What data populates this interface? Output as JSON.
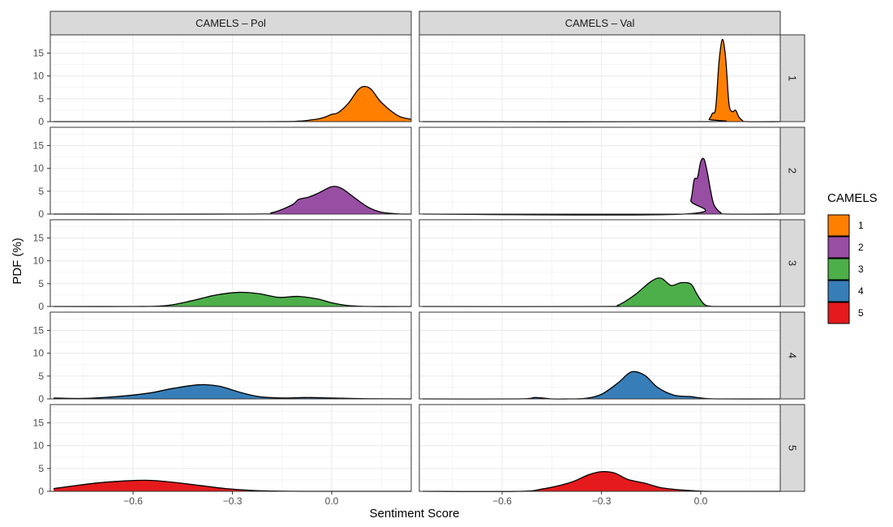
{
  "chart_data": {
    "type": "area",
    "facet_columns": [
      "CAMELS – Pol",
      "CAMELS – Val"
    ],
    "facet_rows": [
      "1",
      "2",
      "3",
      "4",
      "5"
    ],
    "xlabel": "Sentiment Score",
    "ylabel": "PDF (%)",
    "xlim": [
      -0.85,
      0.24
    ],
    "ylim": [
      0,
      19
    ],
    "x_ticks": [
      -0.6,
      -0.3,
      0.0
    ],
    "x_tick_labels": [
      "−0.6",
      "−0.3",
      "0.0"
    ],
    "y_ticks": [
      0,
      5,
      10,
      15
    ],
    "y_tick_labels": [
      "0",
      "5",
      "10",
      "15"
    ],
    "grid": true,
    "legend": {
      "title": "CAMELS",
      "position": "right",
      "items": [
        {
          "label": "1",
          "color": "#FF7F00"
        },
        {
          "label": "2",
          "color": "#984EA3"
        },
        {
          "label": "3",
          "color": "#4DAF4A"
        },
        {
          "label": "4",
          "color": "#377EB8"
        },
        {
          "label": "5",
          "color": "#E41A1C"
        }
      ]
    },
    "series": [
      {
        "name": "1",
        "panel": "Pol",
        "color": "#FF7F00",
        "x_range": [
          -0.84,
          0.24
        ],
        "x": [
          -0.84,
          -0.2,
          -0.1,
          -0.06,
          -0.04,
          -0.02,
          0.0,
          0.02,
          0.05,
          0.08,
          0.1,
          0.12,
          0.15,
          0.2,
          0.24
        ],
        "y": [
          0,
          0,
          0.1,
          0.4,
          0.6,
          1.0,
          1.6,
          2.0,
          4.0,
          7.0,
          7.7,
          7.0,
          4.2,
          1.3,
          0.5
        ]
      },
      {
        "name": "1",
        "panel": "Val",
        "color": "#FF7F00",
        "x_range": [
          -0.84,
          0.24
        ],
        "x": [
          -0.84,
          0.01,
          0.025,
          0.035,
          0.045,
          0.055,
          0.065,
          0.075,
          0.085,
          0.095,
          0.105,
          0.115,
          0.125,
          0.14,
          0.24
        ],
        "y": [
          0,
          0,
          0.5,
          1.8,
          3.0,
          13.0,
          18.0,
          14.0,
          4.0,
          2.2,
          2.5,
          1.0,
          0.3,
          0,
          0
        ]
      },
      {
        "name": "2",
        "panel": "Pol",
        "color": "#984EA3",
        "x_range": [
          -0.84,
          0.24
        ],
        "x": [
          -0.84,
          -0.25,
          -0.18,
          -0.12,
          -0.1,
          -0.07,
          -0.04,
          0.0,
          0.03,
          0.07,
          0.11,
          0.15,
          0.2,
          0.24
        ],
        "y": [
          0,
          0,
          0.3,
          2.0,
          3.2,
          3.7,
          4.6,
          6.0,
          5.6,
          3.5,
          1.5,
          0.4,
          0.05,
          0
        ]
      },
      {
        "name": "2",
        "panel": "Val",
        "color": "#984EA3",
        "x_range": [
          -0.84,
          0.24
        ],
        "x": [
          -0.84,
          -0.05,
          -0.03,
          -0.02,
          -0.01,
          0.0,
          0.01,
          0.02,
          0.03,
          0.04,
          0.06,
          0.08,
          0.24
        ],
        "y": [
          0,
          0,
          3.0,
          7.5,
          8.0,
          11.5,
          12.0,
          9.0,
          5.0,
          2.0,
          0.3,
          0,
          0
        ]
      },
      {
        "name": "3",
        "panel": "Pol",
        "color": "#4DAF4A",
        "x_range": [
          -0.84,
          0.24
        ],
        "x": [
          -0.84,
          -0.6,
          -0.5,
          -0.42,
          -0.35,
          -0.28,
          -0.22,
          -0.16,
          -0.1,
          -0.04,
          0.0,
          0.05,
          0.12,
          0.24
        ],
        "y": [
          0,
          0,
          0.2,
          1.3,
          2.5,
          3.1,
          2.8,
          2.0,
          2.2,
          1.6,
          0.8,
          0.2,
          0,
          0
        ]
      },
      {
        "name": "3",
        "panel": "Val",
        "color": "#4DAF4A",
        "x_range": [
          -0.84,
          0.24
        ],
        "x": [
          -0.84,
          -0.3,
          -0.25,
          -0.2,
          -0.15,
          -0.12,
          -0.09,
          -0.06,
          -0.03,
          -0.01,
          0.01,
          0.03,
          0.08,
          0.24
        ],
        "y": [
          0,
          0,
          0.3,
          2.5,
          5.5,
          6.2,
          4.6,
          5.2,
          4.9,
          2.5,
          0.5,
          0.05,
          0,
          0
        ]
      },
      {
        "name": "4",
        "panel": "Pol",
        "color": "#377EB8",
        "x_range": [
          -0.84,
          0.24
        ],
        "x": [
          -0.84,
          -0.75,
          -0.65,
          -0.55,
          -0.48,
          -0.4,
          -0.34,
          -0.28,
          -0.22,
          -0.15,
          -0.08,
          0.0,
          0.1,
          0.24
        ],
        "y": [
          0.2,
          0.1,
          0.5,
          1.3,
          2.3,
          3.1,
          2.8,
          1.5,
          0.5,
          0.2,
          0.3,
          0.2,
          0.05,
          0
        ]
      },
      {
        "name": "4",
        "panel": "Val",
        "color": "#377EB8",
        "x_range": [
          -0.84,
          0.24
        ],
        "x": [
          -0.84,
          -0.55,
          -0.5,
          -0.45,
          -0.4,
          -0.35,
          -0.3,
          -0.25,
          -0.21,
          -0.17,
          -0.13,
          -0.08,
          -0.03,
          0.0,
          0.05,
          0.24
        ],
        "y": [
          0,
          0,
          0.3,
          0,
          0,
          0.1,
          1.0,
          3.5,
          5.9,
          5.2,
          2.5,
          0.8,
          0.5,
          0.2,
          0,
          0
        ]
      },
      {
        "name": "5",
        "panel": "Pol",
        "color": "#E41A1C",
        "x_range": [
          -0.84,
          0.24
        ],
        "x": [
          -0.84,
          -0.78,
          -0.7,
          -0.62,
          -0.55,
          -0.48,
          -0.4,
          -0.32,
          -0.24,
          -0.16,
          -0.08,
          0.0,
          0.24
        ],
        "y": [
          0.6,
          1.2,
          1.9,
          2.3,
          2.4,
          2.0,
          1.3,
          0.6,
          0.2,
          0.05,
          0,
          0,
          0
        ]
      },
      {
        "name": "5",
        "panel": "Val",
        "color": "#E41A1C",
        "x_range": [
          -0.84,
          0.24
        ],
        "x": [
          -0.84,
          -0.55,
          -0.48,
          -0.42,
          -0.38,
          -0.34,
          -0.3,
          -0.26,
          -0.22,
          -0.17,
          -0.12,
          -0.06,
          0.0,
          0.05,
          0.24
        ],
        "y": [
          0,
          0,
          0.5,
          1.4,
          2.3,
          3.6,
          4.3,
          4.0,
          2.6,
          1.8,
          0.8,
          0.3,
          0.05,
          0,
          0
        ]
      }
    ]
  }
}
